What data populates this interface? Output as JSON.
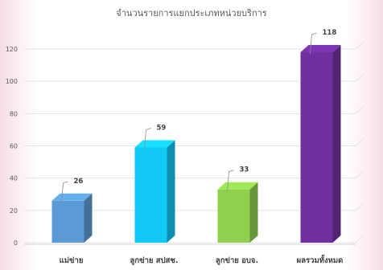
{
  "chart_data": {
    "type": "bar",
    "title": "จำนวนรายการแยกประเภทหน่วยบริการ",
    "categories": [
      "แม่ข่าย",
      "ลูกข่าย สปสช.",
      "ลูกข่าย อบจ.",
      "ผลรวมทั้งหมด"
    ],
    "values": [
      26,
      59,
      33,
      118
    ],
    "colors": [
      "#5b9bd5",
      "#12c8f5",
      "#8fd14f",
      "#7030a0"
    ],
    "ylim": [
      0,
      120
    ],
    "yticks": [
      0,
      20,
      40,
      60,
      80,
      100,
      120
    ],
    "grid": true,
    "legend": "none",
    "style": "3d-column"
  }
}
